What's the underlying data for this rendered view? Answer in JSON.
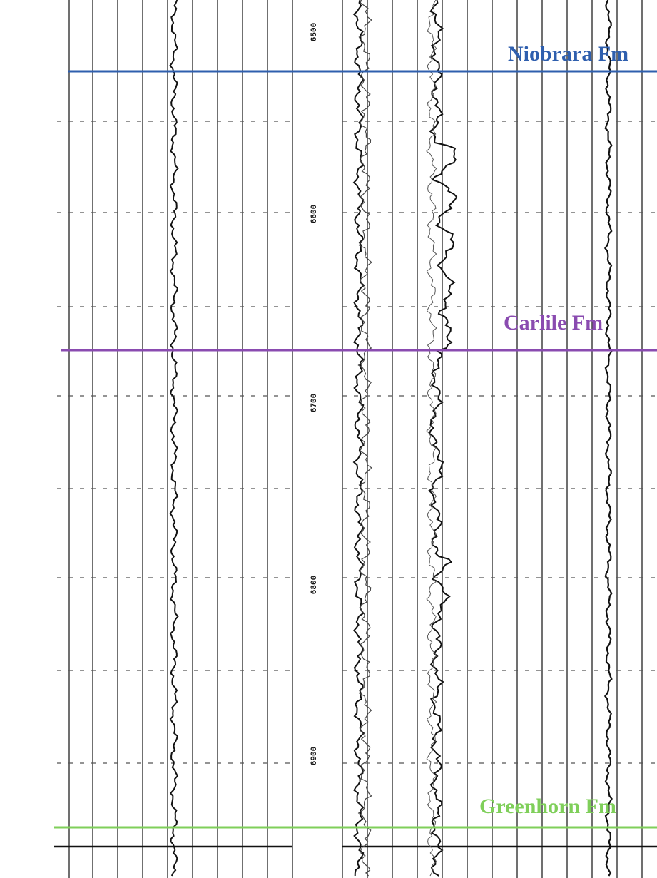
{
  "formation_tops": [
    {
      "label": "Niobrara Fm",
      "color": "#2f5fae"
    },
    {
      "label": "Carlile Fm",
      "color": "#8a4bb0"
    },
    {
      "label": "Greenhorn Fm",
      "color": "#7fcf5a"
    }
  ],
  "depth_labels": [
    "6500",
    "6600",
    "6700",
    "6800",
    "6900"
  ]
}
